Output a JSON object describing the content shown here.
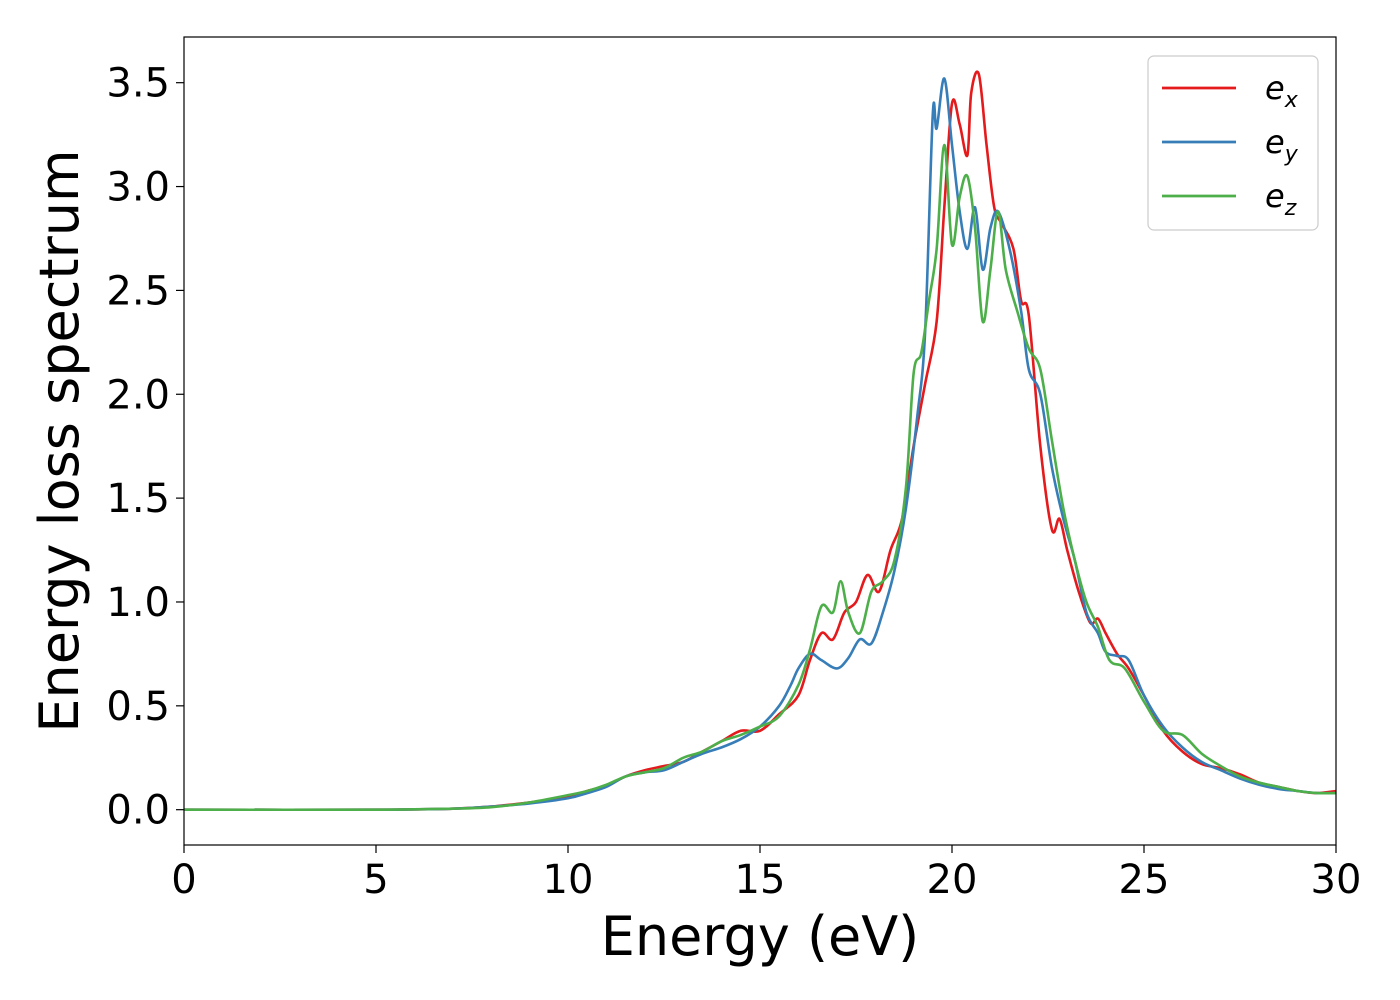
{
  "chart_data": {
    "type": "line",
    "title": "",
    "xlabel": "Energy (eV)",
    "ylabel": "Energy loss spectrum",
    "xlim": [
      0,
      30
    ],
    "ylim": [
      -0.17,
      3.72
    ],
    "xticks": [
      0,
      5,
      10,
      15,
      20,
      25,
      30
    ],
    "xtick_labels": [
      "0",
      "5",
      "10",
      "15",
      "20",
      "25",
      "30"
    ],
    "yticks": [
      0.0,
      0.5,
      1.0,
      1.5,
      2.0,
      2.5,
      3.0,
      3.5
    ],
    "ytick_labels": [
      "0.0",
      "0.5",
      "1.0",
      "1.5",
      "2.0",
      "2.5",
      "3.0",
      "3.5"
    ],
    "grid": false,
    "legend_position": "top-right",
    "series": [
      {
        "name": "e_x",
        "legend_base": "e",
        "legend_sub": "x",
        "color": "#e41a1c",
        "points": [
          [
            0,
            0
          ],
          [
            5,
            0
          ],
          [
            7,
            0.005
          ],
          [
            8,
            0.015
          ],
          [
            9,
            0.035
          ],
          [
            10,
            0.06
          ],
          [
            10.5,
            0.09
          ],
          [
            11,
            0.115
          ],
          [
            11.5,
            0.16
          ],
          [
            12,
            0.19
          ],
          [
            12.5,
            0.21
          ],
          [
            13,
            0.23
          ],
          [
            13.5,
            0.28
          ],
          [
            14,
            0.33
          ],
          [
            14.5,
            0.38
          ],
          [
            15,
            0.38
          ],
          [
            15.5,
            0.46
          ],
          [
            16,
            0.55
          ],
          [
            16.3,
            0.72
          ],
          [
            16.6,
            0.85
          ],
          [
            16.9,
            0.82
          ],
          [
            17.2,
            0.95
          ],
          [
            17.5,
            1.0
          ],
          [
            17.8,
            1.13
          ],
          [
            18.1,
            1.05
          ],
          [
            18.4,
            1.25
          ],
          [
            18.7,
            1.4
          ],
          [
            19,
            1.75
          ],
          [
            19.3,
            2.05
          ],
          [
            19.6,
            2.35
          ],
          [
            19.8,
            2.9
          ],
          [
            20,
            3.4
          ],
          [
            20.2,
            3.3
          ],
          [
            20.4,
            3.15
          ],
          [
            20.5,
            3.45
          ],
          [
            20.7,
            3.54
          ],
          [
            20.9,
            3.2
          ],
          [
            21.1,
            2.9
          ],
          [
            21.3,
            2.82
          ],
          [
            21.6,
            2.7
          ],
          [
            21.8,
            2.45
          ],
          [
            22,
            2.38
          ],
          [
            22.3,
            1.75
          ],
          [
            22.6,
            1.35
          ],
          [
            22.8,
            1.4
          ],
          [
            23,
            1.25
          ],
          [
            23.3,
            1.05
          ],
          [
            23.6,
            0.9
          ],
          [
            23.8,
            0.92
          ],
          [
            24,
            0.85
          ],
          [
            24.3,
            0.75
          ],
          [
            24.6,
            0.68
          ],
          [
            25,
            0.55
          ],
          [
            25.5,
            0.38
          ],
          [
            26,
            0.28
          ],
          [
            26.5,
            0.22
          ],
          [
            27,
            0.2
          ],
          [
            27.5,
            0.17
          ],
          [
            28,
            0.13
          ],
          [
            28.5,
            0.11
          ],
          [
            29,
            0.09
          ],
          [
            29.5,
            0.08
          ],
          [
            30,
            0.09
          ]
        ]
      },
      {
        "name": "e_y",
        "legend_base": "e",
        "legend_sub": "y",
        "color": "#377eb8",
        "points": [
          [
            0,
            0
          ],
          [
            5,
            0
          ],
          [
            7,
            0.005
          ],
          [
            8,
            0.015
          ],
          [
            9,
            0.03
          ],
          [
            10,
            0.055
          ],
          [
            10.5,
            0.08
          ],
          [
            11,
            0.11
          ],
          [
            11.5,
            0.16
          ],
          [
            12,
            0.18
          ],
          [
            12.5,
            0.19
          ],
          [
            13,
            0.23
          ],
          [
            13.5,
            0.27
          ],
          [
            14,
            0.3
          ],
          [
            14.5,
            0.34
          ],
          [
            15,
            0.4
          ],
          [
            15.5,
            0.5
          ],
          [
            15.8,
            0.6
          ],
          [
            16,
            0.68
          ],
          [
            16.3,
            0.75
          ],
          [
            16.6,
            0.72
          ],
          [
            17,
            0.68
          ],
          [
            17.3,
            0.73
          ],
          [
            17.6,
            0.82
          ],
          [
            17.9,
            0.8
          ],
          [
            18.2,
            0.95
          ],
          [
            18.5,
            1.15
          ],
          [
            18.8,
            1.45
          ],
          [
            19.1,
            1.9
          ],
          [
            19.3,
            2.3
          ],
          [
            19.5,
            3.35
          ],
          [
            19.6,
            3.28
          ],
          [
            19.8,
            3.52
          ],
          [
            20,
            3.2
          ],
          [
            20.2,
            2.88
          ],
          [
            20.4,
            2.7
          ],
          [
            20.6,
            2.9
          ],
          [
            20.8,
            2.6
          ],
          [
            21,
            2.8
          ],
          [
            21.2,
            2.88
          ],
          [
            21.5,
            2.7
          ],
          [
            21.8,
            2.4
          ],
          [
            22,
            2.12
          ],
          [
            22.3,
            2.0
          ],
          [
            22.6,
            1.65
          ],
          [
            22.9,
            1.4
          ],
          [
            23.2,
            1.2
          ],
          [
            23.5,
            0.95
          ],
          [
            23.8,
            0.85
          ],
          [
            24,
            0.76
          ],
          [
            24.3,
            0.74
          ],
          [
            24.6,
            0.72
          ],
          [
            25,
            0.55
          ],
          [
            25.5,
            0.4
          ],
          [
            26,
            0.3
          ],
          [
            26.5,
            0.23
          ],
          [
            27,
            0.19
          ],
          [
            27.5,
            0.15
          ],
          [
            28,
            0.12
          ],
          [
            28.5,
            0.1
          ],
          [
            29,
            0.09
          ],
          [
            29.5,
            0.08
          ],
          [
            30,
            0.08
          ]
        ]
      },
      {
        "name": "e_z",
        "legend_base": "e",
        "legend_sub": "z",
        "color": "#4daf4a",
        "points": [
          [
            0,
            0
          ],
          [
            5,
            0
          ],
          [
            7,
            0.005
          ],
          [
            8,
            0.012
          ],
          [
            9,
            0.035
          ],
          [
            10,
            0.07
          ],
          [
            10.5,
            0.09
          ],
          [
            11,
            0.12
          ],
          [
            11.5,
            0.16
          ],
          [
            12,
            0.18
          ],
          [
            12.5,
            0.2
          ],
          [
            13,
            0.25
          ],
          [
            13.5,
            0.28
          ],
          [
            14,
            0.33
          ],
          [
            14.5,
            0.36
          ],
          [
            15,
            0.4
          ],
          [
            15.5,
            0.45
          ],
          [
            16,
            0.6
          ],
          [
            16.3,
            0.77
          ],
          [
            16.6,
            0.98
          ],
          [
            16.9,
            0.95
          ],
          [
            17.1,
            1.1
          ],
          [
            17.3,
            0.95
          ],
          [
            17.6,
            0.85
          ],
          [
            17.9,
            1.05
          ],
          [
            18.2,
            1.1
          ],
          [
            18.5,
            1.2
          ],
          [
            18.8,
            1.55
          ],
          [
            19,
            2.1
          ],
          [
            19.2,
            2.2
          ],
          [
            19.4,
            2.45
          ],
          [
            19.6,
            2.7
          ],
          [
            19.8,
            3.2
          ],
          [
            20,
            2.72
          ],
          [
            20.2,
            2.95
          ],
          [
            20.4,
            3.05
          ],
          [
            20.6,
            2.8
          ],
          [
            20.8,
            2.35
          ],
          [
            21,
            2.6
          ],
          [
            21.2,
            2.88
          ],
          [
            21.4,
            2.6
          ],
          [
            21.7,
            2.4
          ],
          [
            22,
            2.22
          ],
          [
            22.3,
            2.12
          ],
          [
            22.6,
            1.78
          ],
          [
            22.9,
            1.45
          ],
          [
            23.2,
            1.2
          ],
          [
            23.5,
            1.0
          ],
          [
            23.8,
            0.88
          ],
          [
            24.1,
            0.72
          ],
          [
            24.5,
            0.68
          ],
          [
            25,
            0.52
          ],
          [
            25.5,
            0.38
          ],
          [
            26,
            0.36
          ],
          [
            26.5,
            0.27
          ],
          [
            27,
            0.21
          ],
          [
            27.5,
            0.16
          ],
          [
            28,
            0.13
          ],
          [
            28.5,
            0.11
          ],
          [
            29,
            0.09
          ],
          [
            29.5,
            0.08
          ],
          [
            30,
            0.08
          ]
        ]
      }
    ]
  }
}
